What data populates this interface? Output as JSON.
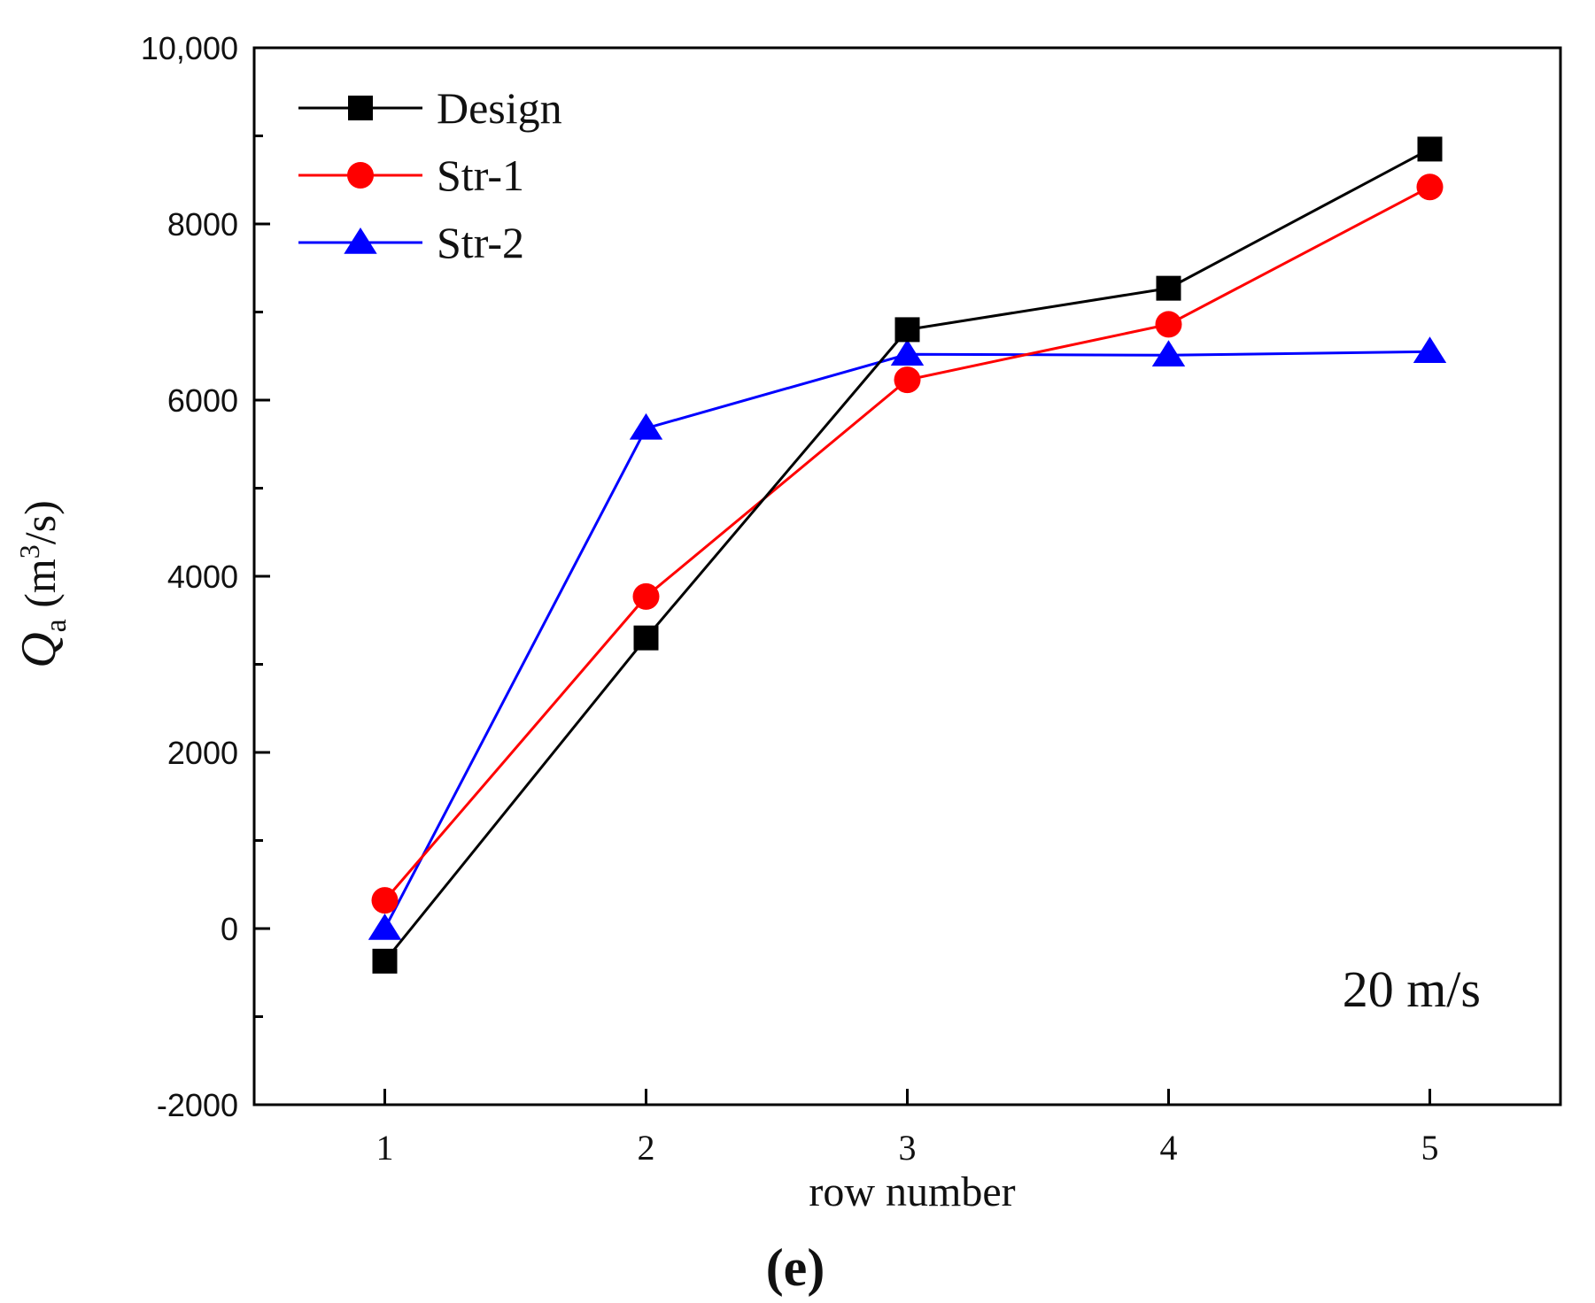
{
  "chart_data": {
    "type": "line",
    "panel_label": "(e)",
    "annotation": "20 m/s",
    "xlabel": "row number",
    "ylabel": {
      "symbol": "Q",
      "subscript": "a",
      "unit_prefix": "(m",
      "superscript": "3",
      "unit_suffix": "/s)"
    },
    "x": [
      1,
      2,
      3,
      4,
      5
    ],
    "xlim": [
      0.5,
      5.5
    ],
    "ylim": [
      -2000,
      10000
    ],
    "x_ticks": [
      1,
      2,
      3,
      4,
      5
    ],
    "x_tick_labels": [
      "1",
      "2",
      "3",
      "4",
      "5"
    ],
    "y_ticks": [
      -2000,
      0,
      2000,
      4000,
      6000,
      8000,
      10000
    ],
    "y_tick_labels": [
      "-2000",
      "0",
      "2000",
      "4000",
      "6000",
      "8000",
      "10,000"
    ],
    "y_minor_ticks": [
      -1000,
      1000,
      3000,
      5000,
      7000,
      9000
    ],
    "grid": false,
    "legend_position": "top-left",
    "series": [
      {
        "name": "Design",
        "color": "#000000",
        "marker": "square",
        "values": [
          -370,
          3300,
          6800,
          7270,
          8850
        ]
      },
      {
        "name": "Str-1",
        "color": "#ff0000",
        "marker": "circle",
        "values": [
          320,
          3770,
          6230,
          6860,
          8420
        ]
      },
      {
        "name": "Str-2",
        "color": "#0000ff",
        "marker": "triangle",
        "values": [
          0,
          5680,
          6520,
          6510,
          6550
        ]
      }
    ]
  }
}
